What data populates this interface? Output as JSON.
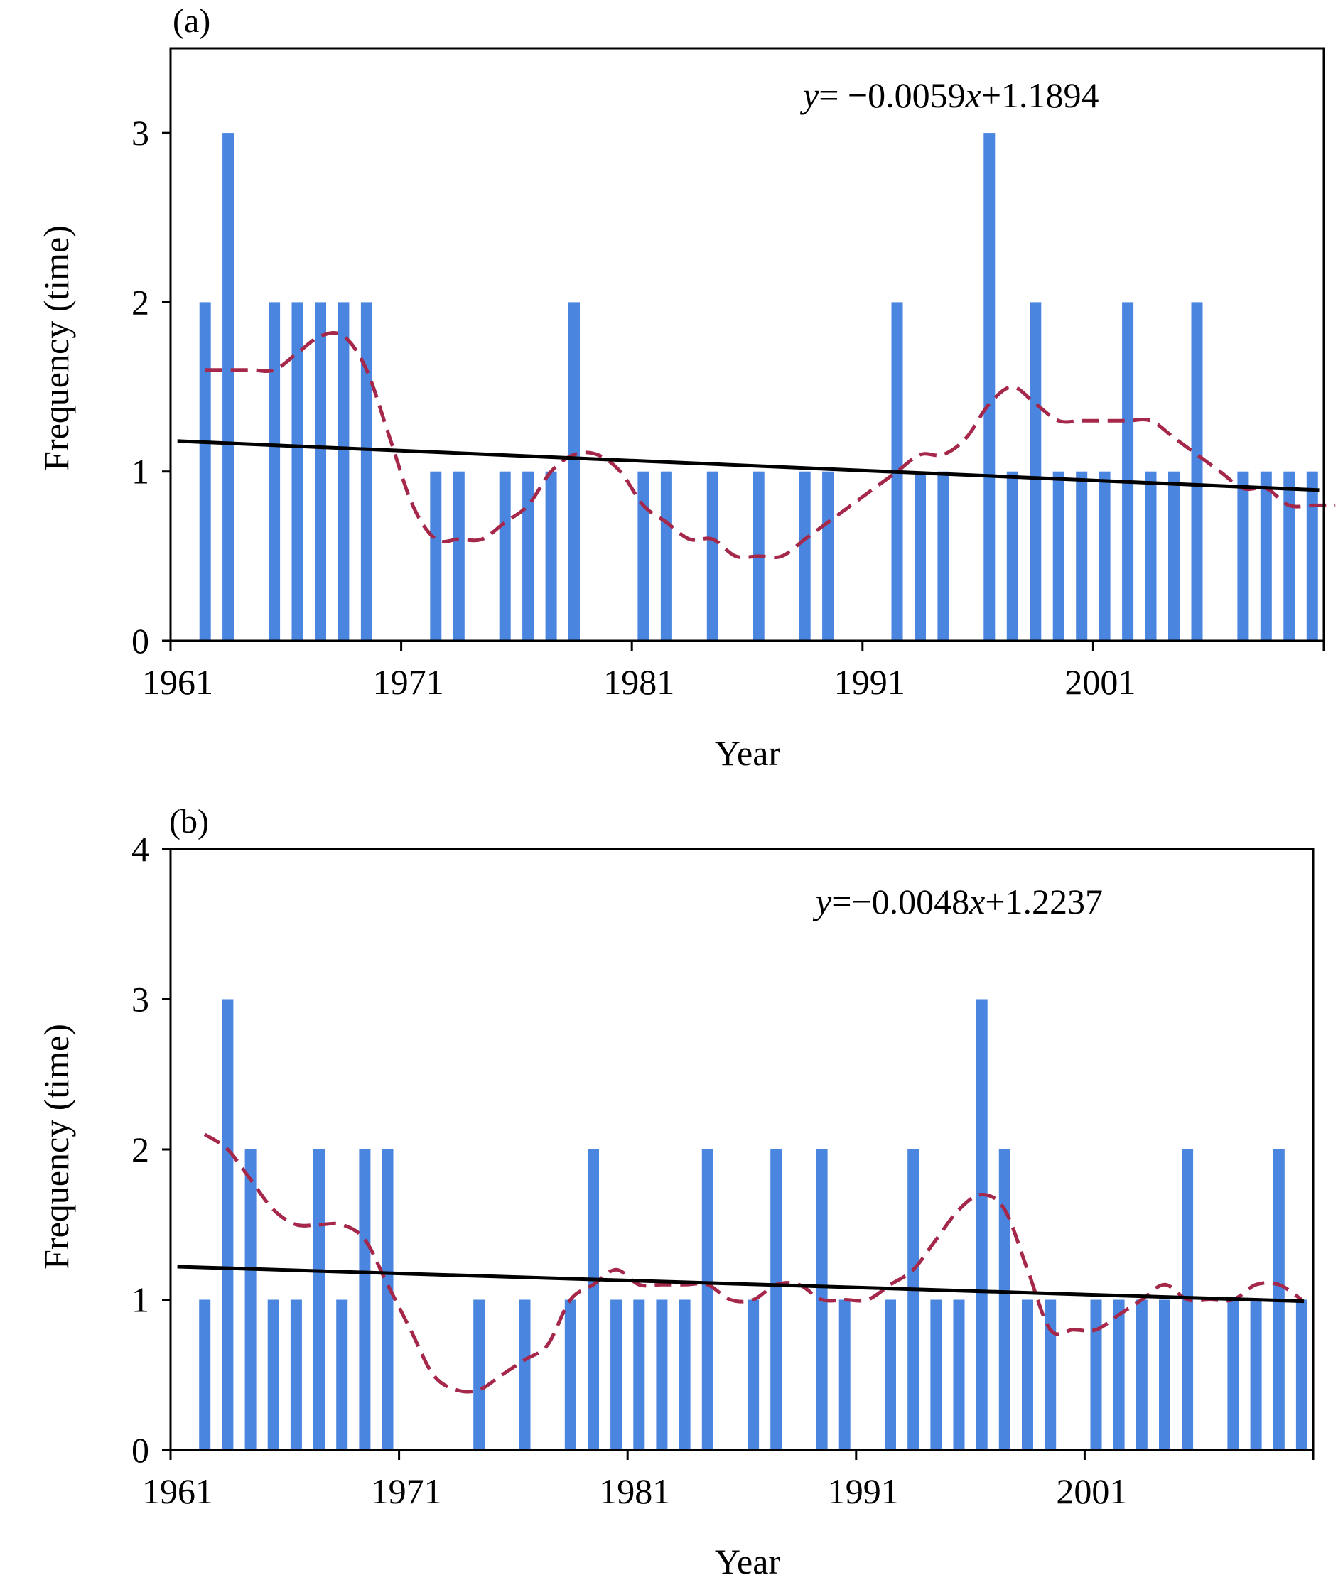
{
  "chart_data": [
    {
      "type": "bar",
      "panel_label": "(a)",
      "xlabel": "Year",
      "ylabel": "Frequency (time)",
      "xlim": [
        1960,
        2010
      ],
      "ylim": [
        0,
        3.5
      ],
      "x_ticks": [
        "1961",
        "1971",
        "1981",
        "1991",
        "2001"
      ],
      "y_ticks": [
        "0",
        "1",
        "2",
        "3"
      ],
      "equation": {
        "var": "y",
        "text1": "= −0.0059",
        "var2": "x",
        "text2": "+1.1894"
      },
      "bar_color": "#4a86e0",
      "moving_average_color": "#a5284b",
      "trend_color": "#000000",
      "series": [
        {
          "name": "Frequency",
          "x": [
            1961,
            1962,
            1963,
            1964,
            1965,
            1966,
            1967,
            1968,
            1969,
            1970,
            1971,
            1972,
            1973,
            1974,
            1975,
            1976,
            1977,
            1978,
            1979,
            1980,
            1981,
            1982,
            1983,
            1984,
            1985,
            1986,
            1987,
            1988,
            1989,
            1990,
            1991,
            1992,
            1993,
            1994,
            1995,
            1996,
            1997,
            1998,
            1999,
            2000,
            2001,
            2002,
            2003,
            2004,
            2005,
            2006,
            2007,
            2008,
            2009
          ],
          "values": [
            2,
            3,
            0,
            2,
            2,
            2,
            2,
            2,
            0,
            0,
            1,
            1,
            0,
            1,
            1,
            1,
            2,
            0,
            0,
            1,
            1,
            0,
            1,
            0,
            1,
            0,
            1,
            1,
            0,
            0,
            2,
            1,
            1,
            0,
            3,
            1,
            2,
            1,
            1,
            1,
            2,
            1,
            1,
            2,
            0,
            1,
            1,
            1,
            1
          ]
        },
        {
          "name": "moving average",
          "x": [
            1961,
            1962,
            1963,
            1964,
            1965,
            1966,
            1967,
            1968,
            1969,
            1970,
            1971,
            1972,
            1973,
            1974,
            1975,
            1976,
            1977,
            1978,
            1979,
            1980,
            1981,
            1982,
            1983,
            1984,
            1985,
            1986,
            1987,
            1988,
            1989,
            1990,
            1991,
            1992,
            1993,
            1994,
            1995,
            1996,
            1997,
            1998,
            1999,
            2000,
            2001,
            2002,
            2003,
            2004,
            2005,
            2006,
            2007,
            2008,
            2009,
            2010
          ],
          "values": [
            1.6,
            1.6,
            1.6,
            1.6,
            1.7,
            1.8,
            1.8,
            1.6,
            1.2,
            0.8,
            0.6,
            0.6,
            0.6,
            0.7,
            0.8,
            1.0,
            1.1,
            1.1,
            1.0,
            0.8,
            0.7,
            0.6,
            0.6,
            0.5,
            0.5,
            0.5,
            0.6,
            0.7,
            0.8,
            0.9,
            1.0,
            1.1,
            1.1,
            1.2,
            1.4,
            1.5,
            1.4,
            1.3,
            1.3,
            1.3,
            1.3,
            1.3,
            1.2,
            1.1,
            1.0,
            0.9,
            0.9,
            0.8,
            0.8,
            0.8
          ]
        },
        {
          "name": "linear trend",
          "x": [
            1960.3,
            2009.8
          ],
          "values": [
            1.18,
            0.89
          ]
        }
      ]
    },
    {
      "type": "bar",
      "panel_label": "(b)",
      "xlabel": "Year",
      "ylabel": "Frequency (time)",
      "xlim": [
        1960,
        2010
      ],
      "ylim": [
        0,
        4
      ],
      "x_ticks": [
        "1961",
        "1971",
        "1981",
        "1991",
        "2001"
      ],
      "y_ticks": [
        "0",
        "1",
        "2",
        "3",
        "4"
      ],
      "equation": {
        "var": "y",
        "text1": "=−0.0048",
        "var2": "x",
        "text2": "+1.2237"
      },
      "bar_color": "#4a86e0",
      "moving_average_color": "#a5284b",
      "trend_color": "#000000",
      "series": [
        {
          "name": "Frequency",
          "x": [
            1961,
            1962,
            1963,
            1964,
            1965,
            1966,
            1967,
            1968,
            1969,
            1970,
            1971,
            1972,
            1973,
            1974,
            1975,
            1976,
            1977,
            1978,
            1979,
            1980,
            1981,
            1982,
            1983,
            1984,
            1985,
            1986,
            1987,
            1988,
            1989,
            1990,
            1991,
            1992,
            1993,
            1994,
            1995,
            1996,
            1997,
            1998,
            1999,
            2000,
            2001,
            2002,
            2003,
            2004,
            2005,
            2006,
            2007,
            2008,
            2009
          ],
          "values": [
            1,
            3,
            2,
            1,
            1,
            2,
            1,
            2,
            2,
            0,
            0,
            0,
            1,
            0,
            1,
            0,
            1,
            2,
            1,
            1,
            1,
            1,
            2,
            0,
            1,
            2,
            0,
            2,
            1,
            0,
            1,
            2,
            1,
            1,
            3,
            2,
            1,
            1,
            0,
            1,
            1,
            1,
            1,
            2,
            0,
            1,
            1,
            2,
            1
          ]
        },
        {
          "name": "moving average",
          "x": [
            1961,
            1962,
            1963,
            1964,
            1965,
            1966,
            1967,
            1968,
            1969,
            1970,
            1971,
            1972,
            1973,
            1974,
            1975,
            1976,
            1977,
            1978,
            1979,
            1980,
            1981,
            1982,
            1983,
            1984,
            1985,
            1986,
            1987,
            1988,
            1989,
            1990,
            1991,
            1992,
            1993,
            1994,
            1995,
            1996,
            1997,
            1998,
            1999,
            2000,
            2001,
            2002,
            2003,
            2004,
            2005,
            2006,
            2007,
            2008,
            2009
          ],
          "values": [
            2.1,
            2.0,
            1.8,
            1.6,
            1.5,
            1.5,
            1.5,
            1.4,
            1.1,
            0.8,
            0.5,
            0.4,
            0.4,
            0.5,
            0.6,
            0.7,
            1.0,
            1.1,
            1.2,
            1.1,
            1.1,
            1.1,
            1.1,
            1.0,
            1.0,
            1.1,
            1.1,
            1.0,
            1.0,
            1.0,
            1.1,
            1.2,
            1.4,
            1.6,
            1.7,
            1.6,
            1.2,
            0.8,
            0.8,
            0.8,
            0.9,
            1.0,
            1.1,
            1.0,
            1.0,
            1.0,
            1.1,
            1.1,
            1.0
          ]
        },
        {
          "name": "linear trend",
          "x": [
            1960.3,
            2009.6
          ],
          "values": [
            1.22,
            0.99
          ]
        }
      ]
    }
  ]
}
